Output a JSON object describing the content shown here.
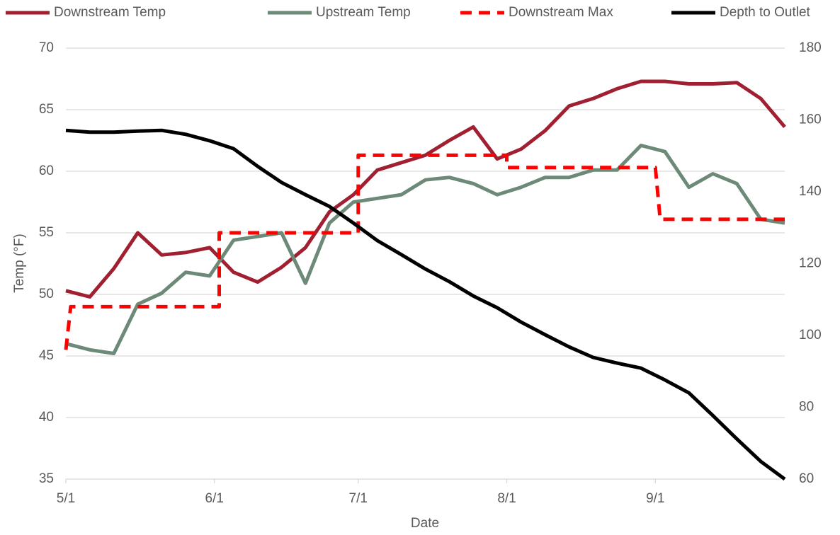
{
  "chart_data": {
    "type": "line",
    "x_label": "Date",
    "y_label": "Temp (°F)",
    "x": [
      0,
      5,
      10,
      15,
      20,
      25,
      30,
      35,
      40,
      45,
      50,
      55,
      60,
      65,
      70,
      75,
      80,
      85,
      90,
      95,
      100,
      105,
      110,
      115,
      120,
      125,
      130,
      135,
      140,
      145,
      150
    ],
    "xlim": [
      0,
      150
    ],
    "xticks": [
      {
        "value": 0,
        "label": "5/1"
      },
      {
        "value": 31,
        "label": "6/1"
      },
      {
        "value": 61,
        "label": "7/1"
      },
      {
        "value": 92,
        "label": "8/1"
      },
      {
        "value": 123,
        "label": "9/1"
      }
    ],
    "ylim": [
      35,
      70
    ],
    "yticks": [
      35,
      40,
      45,
      50,
      55,
      60,
      65,
      70
    ],
    "y2lim": [
      60,
      180
    ],
    "y2ticks": [
      60,
      80,
      100,
      120,
      140,
      160,
      180
    ],
    "grid": true,
    "legend": "top",
    "series": [
      {
        "name": "Downstream Temp",
        "color": "#a01f30",
        "values": [
          50.3,
          49.8,
          52.1,
          55.0,
          53.2,
          53.4,
          53.8,
          51.8,
          51.0,
          52.2,
          53.8,
          56.7,
          58.1,
          60.1,
          60.7,
          61.3,
          62.5,
          63.6,
          61.0,
          61.8,
          63.3,
          65.3,
          65.9,
          66.7,
          67.3,
          67.3,
          67.1,
          67.1,
          67.2,
          65.9,
          63.6
        ]
      },
      {
        "name": "Upstream Temp",
        "color": "#6d8a78",
        "values": [
          46.0,
          45.5,
          45.2,
          49.2,
          50.1,
          51.8,
          51.5,
          54.4,
          54.7,
          55.0,
          50.9,
          55.8,
          57.5,
          57.8,
          58.1,
          59.3,
          59.5,
          59.0,
          58.1,
          58.7,
          59.5,
          59.5,
          60.1,
          60.1,
          62.1,
          61.6,
          58.7,
          59.8,
          59.0,
          56.1,
          55.8
        ]
      },
      {
        "name": "Downstream Max",
        "color": "#ff0000",
        "style": "dashed",
        "x": [
          0,
          1,
          32,
          32,
          61,
          61,
          92,
          92,
          123,
          124,
          150
        ],
        "values": [
          45.5,
          49.0,
          49.0,
          55.0,
          55.0,
          61.3,
          61.3,
          60.3,
          60.3,
          56.1,
          56.1
        ]
      },
      {
        "name": "Depth to Outlet",
        "color": "#000000",
        "axis": "y2",
        "values": [
          157.1,
          156.6,
          156.6,
          156.9,
          157.1,
          156.0,
          154.2,
          152.0,
          147.1,
          142.6,
          139.2,
          135.9,
          131.3,
          126.4,
          122.5,
          118.5,
          115.0,
          111.0,
          107.7,
          103.7,
          100.2,
          96.8,
          93.9,
          92.3,
          90.9,
          87.6,
          84.0,
          77.7,
          71.2,
          64.9,
          60.0
        ]
      }
    ]
  }
}
